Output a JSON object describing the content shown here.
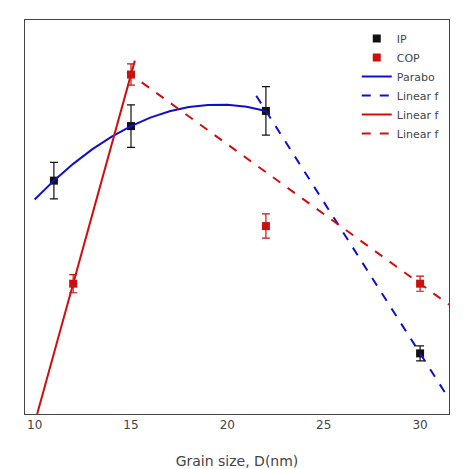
{
  "chart_data": {
    "type": "scatter",
    "xlabel": "Grain size, D(nm)",
    "xlim": [
      9.5,
      31.5
    ],
    "xticks": [
      10,
      15,
      20,
      25,
      30
    ],
    "ylim": [
      -0.15,
      1.15
    ],
    "tick_labels": "x",
    "grid": false,
    "legend": "upper right",
    "series": [
      {
        "name": "IP",
        "type": "scatter",
        "marker": "square",
        "color": "#111111",
        "x": [
          11,
          15,
          22,
          30
        ],
        "values": [
          0.62,
          0.8,
          0.85,
          0.05
        ],
        "error": [
          0.06,
          0.07,
          0.08,
          0.025
        ]
      },
      {
        "name": "COP",
        "type": "scatter",
        "marker": "square",
        "color": "#CC1010",
        "x": [
          12,
          15,
          22,
          30
        ],
        "values": [
          0.28,
          0.97,
          0.47,
          0.28
        ],
        "error": [
          0.03,
          0.035,
          0.04,
          0.025
        ]
      },
      {
        "name": "Parabo",
        "type": "line",
        "line_style": "solid",
        "color": "#1010CC",
        "x": [
          10,
          11,
          12,
          13,
          14,
          15,
          16,
          17,
          18,
          19,
          20,
          21,
          22
        ],
        "values": [
          0.5578,
          0.62,
          0.6753,
          0.7238,
          0.7653,
          0.8,
          0.8278,
          0.8487,
          0.8627,
          0.8699,
          0.8701,
          0.8635,
          0.85
        ]
      },
      {
        "name": "Linear f",
        "type": "line",
        "line_style": "dashed",
        "color": "#1010CC",
        "x": [
          21.5,
          31.5
        ],
        "values": [
          0.9,
          -0.1
        ]
      },
      {
        "name": "Linear f",
        "type": "line",
        "line_style": "solid",
        "color": "#CC1010",
        "x": [
          10.130435,
          15.2
        ],
        "values": [
          -0.15,
          1.016
        ]
      },
      {
        "name": "Linear f",
        "type": "line",
        "line_style": "dashed",
        "color": "#CC1010",
        "x": [
          14.8,
          31.5
        ],
        "values": [
          0.9792,
          0.211
        ]
      }
    ]
  }
}
